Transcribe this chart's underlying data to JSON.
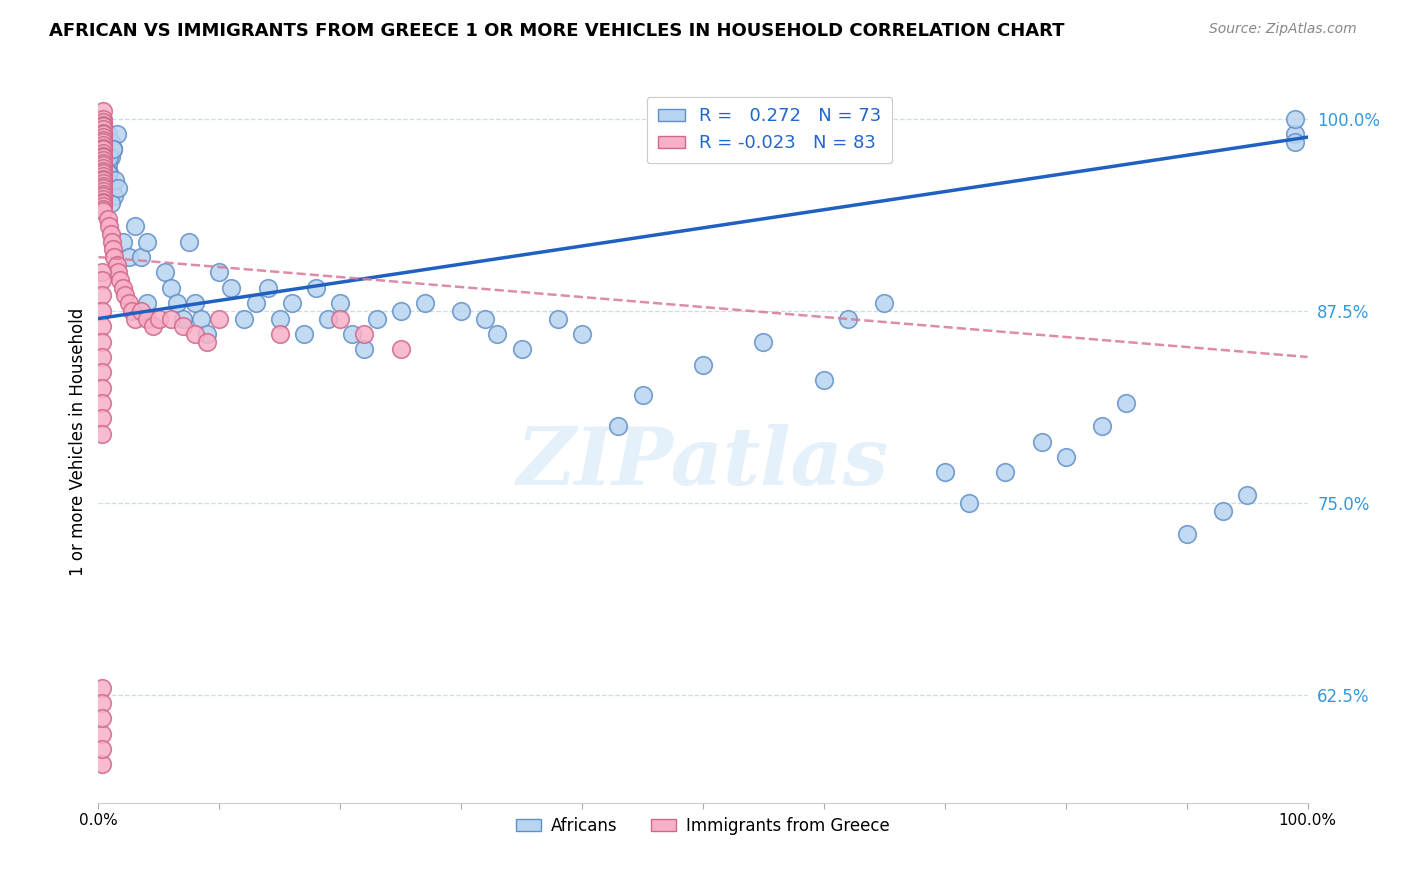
{
  "title": "AFRICAN VS IMMIGRANTS FROM GREECE 1 OR MORE VEHICLES IN HOUSEHOLD CORRELATION CHART",
  "source": "Source: ZipAtlas.com",
  "ylabel": "1 or more Vehicles in Household",
  "legend_africans": "Africans",
  "legend_greece": "Immigrants from Greece",
  "R_africans": 0.272,
  "N_africans": 73,
  "R_greece": -0.023,
  "N_greece": 83,
  "color_africans_face": "#b8d4f0",
  "color_africans_edge": "#6090c8",
  "color_greece_face": "#f8b0c8",
  "color_greece_edge": "#d06888",
  "color_trend_africans": "#2060c0",
  "color_trend_greece": "#d87898",
  "xlim": [
    0.0,
    1.0
  ],
  "ylim": [
    0.555,
    1.025
  ],
  "yticks": [
    0.625,
    0.75,
    0.875,
    1.0
  ],
  "ytick_labels": [
    "62.5%",
    "75.0%",
    "87.5%",
    "100.0%"
  ],
  "xtick_labels": [
    "0.0%",
    "",
    "",
    "",
    "",
    "",
    "",
    "",
    "",
    "",
    "100.0%"
  ],
  "watermark_text": "ZIPatlas",
  "trend_africans_x0": 0.0,
  "trend_africans_y0": 0.87,
  "trend_africans_x1": 1.0,
  "trend_africans_y1": 0.988,
  "trend_greece_x0": 0.0,
  "trend_greece_y0": 0.91,
  "trend_greece_x1": 1.0,
  "trend_greece_y1": 0.845,
  "africans_x": [
    0.008,
    0.01,
    0.012,
    0.01,
    0.008,
    0.009,
    0.007,
    0.011,
    0.013,
    0.01,
    0.015,
    0.012,
    0.009,
    0.008,
    0.014,
    0.016,
    0.012,
    0.02,
    0.025,
    0.03,
    0.035,
    0.04,
    0.04,
    0.055,
    0.06,
    0.065,
    0.07,
    0.075,
    0.08,
    0.085,
    0.09,
    0.1,
    0.11,
    0.12,
    0.13,
    0.14,
    0.15,
    0.16,
    0.17,
    0.18,
    0.19,
    0.2,
    0.21,
    0.22,
    0.23,
    0.25,
    0.27,
    0.3,
    0.32,
    0.33,
    0.35,
    0.38,
    0.4,
    0.43,
    0.45,
    0.5,
    0.55,
    0.6,
    0.62,
    0.65,
    0.7,
    0.72,
    0.75,
    0.78,
    0.8,
    0.83,
    0.85,
    0.9,
    0.93,
    0.95,
    0.99,
    0.99,
    0.99
  ],
  "africans_y": [
    0.99,
    0.985,
    0.98,
    0.975,
    0.97,
    0.965,
    0.96,
    0.955,
    0.95,
    0.945,
    0.99,
    0.98,
    0.975,
    0.965,
    0.96,
    0.955,
    0.98,
    0.92,
    0.91,
    0.93,
    0.91,
    0.92,
    0.88,
    0.9,
    0.89,
    0.88,
    0.87,
    0.92,
    0.88,
    0.87,
    0.86,
    0.9,
    0.89,
    0.87,
    0.88,
    0.89,
    0.87,
    0.88,
    0.86,
    0.89,
    0.87,
    0.88,
    0.86,
    0.85,
    0.87,
    0.875,
    0.88,
    0.875,
    0.87,
    0.86,
    0.85,
    0.87,
    0.86,
    0.8,
    0.82,
    0.84,
    0.855,
    0.83,
    0.87,
    0.88,
    0.77,
    0.75,
    0.77,
    0.79,
    0.78,
    0.8,
    0.815,
    0.73,
    0.745,
    0.755,
    0.99,
    0.985,
    1.0
  ],
  "greece_x": [
    0.004,
    0.004,
    0.004,
    0.004,
    0.004,
    0.004,
    0.004,
    0.004,
    0.004,
    0.004,
    0.004,
    0.004,
    0.004,
    0.004,
    0.004,
    0.004,
    0.004,
    0.004,
    0.004,
    0.004,
    0.004,
    0.004,
    0.004,
    0.004,
    0.004,
    0.004,
    0.004,
    0.004,
    0.004,
    0.004,
    0.004,
    0.004,
    0.004,
    0.004,
    0.004,
    0.004,
    0.004,
    0.004,
    0.008,
    0.009,
    0.01,
    0.011,
    0.012,
    0.013,
    0.015,
    0.016,
    0.018,
    0.02,
    0.022,
    0.025,
    0.028,
    0.03,
    0.035,
    0.04,
    0.045,
    0.05,
    0.06,
    0.07,
    0.08,
    0.09,
    0.1,
    0.15,
    0.2,
    0.22,
    0.25,
    0.003,
    0.003,
    0.003,
    0.003,
    0.003,
    0.003,
    0.003,
    0.003,
    0.003,
    0.003,
    0.003,
    0.003,
    0.003,
    0.003,
    0.003,
    0.003,
    0.003,
    0.003
  ],
  "greece_y": [
    1.005,
    1.0,
    0.998,
    0.996,
    0.995,
    0.993,
    0.991,
    0.99,
    0.988,
    0.986,
    0.985,
    0.983,
    0.981,
    0.98,
    0.978,
    0.976,
    0.975,
    0.973,
    0.971,
    0.97,
    0.968,
    0.966,
    0.965,
    0.963,
    0.961,
    0.96,
    0.958,
    0.956,
    0.955,
    0.953,
    0.951,
    0.95,
    0.948,
    0.946,
    0.945,
    0.943,
    0.941,
    0.94,
    0.935,
    0.93,
    0.925,
    0.92,
    0.915,
    0.91,
    0.905,
    0.9,
    0.895,
    0.89,
    0.885,
    0.88,
    0.875,
    0.87,
    0.875,
    0.87,
    0.865,
    0.87,
    0.87,
    0.865,
    0.86,
    0.855,
    0.87,
    0.86,
    0.87,
    0.86,
    0.85,
    0.9,
    0.895,
    0.885,
    0.875,
    0.865,
    0.855,
    0.845,
    0.835,
    0.825,
    0.815,
    0.805,
    0.795,
    0.63,
    0.62,
    0.58,
    0.6,
    0.61,
    0.59
  ]
}
